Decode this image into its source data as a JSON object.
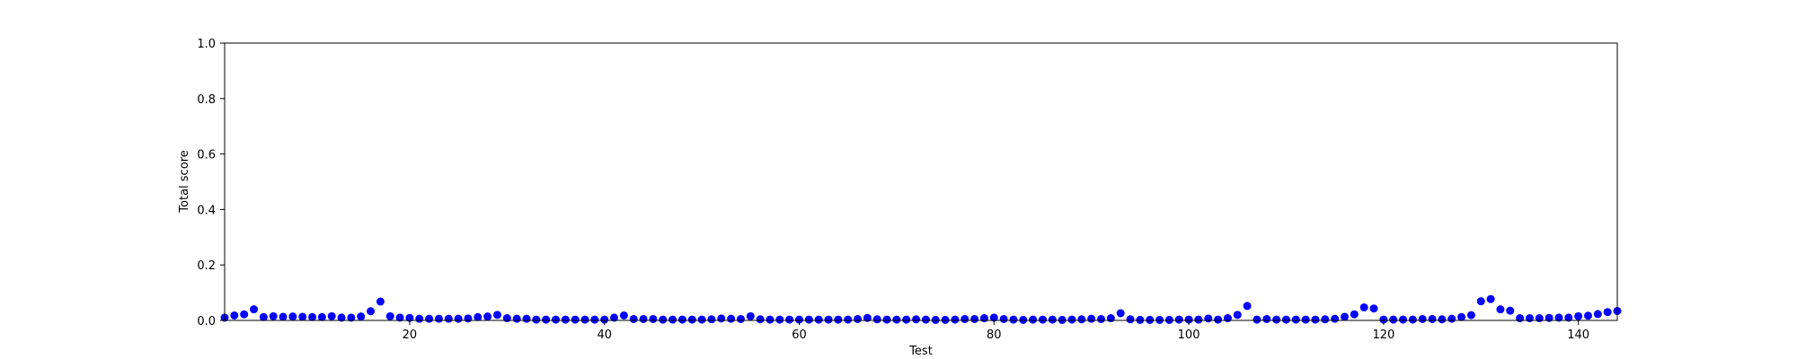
{
  "chart_data": {
    "type": "scatter",
    "title": "",
    "xlabel": "Test",
    "ylabel": "Total score",
    "xlim": [
      1,
      144
    ],
    "ylim": [
      0,
      1.0
    ],
    "x_ticks": [
      20,
      40,
      60,
      80,
      100,
      120,
      140
    ],
    "y_ticks": [
      0.0,
      0.2,
      0.4,
      0.6,
      0.8,
      1.0
    ],
    "x_tick_labels": [
      "20",
      "40",
      "60",
      "80",
      "100",
      "120",
      "140"
    ],
    "y_tick_labels": [
      "0.0",
      "0.2",
      "0.4",
      "0.6",
      "0.8",
      "1.0"
    ],
    "grid": false,
    "marker_color": "#0000ff",
    "x": [
      1,
      2,
      3,
      4,
      5,
      6,
      7,
      8,
      9,
      10,
      11,
      12,
      13,
      14,
      15,
      16,
      17,
      18,
      19,
      20,
      21,
      22,
      23,
      24,
      25,
      26,
      27,
      28,
      29,
      30,
      31,
      32,
      33,
      34,
      35,
      36,
      37,
      38,
      39,
      40,
      41,
      42,
      43,
      44,
      45,
      46,
      47,
      48,
      49,
      50,
      51,
      52,
      53,
      54,
      55,
      56,
      57,
      58,
      59,
      60,
      61,
      62,
      63,
      64,
      65,
      66,
      67,
      68,
      69,
      70,
      71,
      72,
      73,
      74,
      75,
      76,
      77,
      78,
      79,
      80,
      81,
      82,
      83,
      84,
      85,
      86,
      87,
      88,
      89,
      90,
      91,
      92,
      93,
      94,
      95,
      96,
      97,
      98,
      99,
      100,
      101,
      102,
      103,
      104,
      105,
      106,
      107,
      108,
      109,
      110,
      111,
      112,
      113,
      114,
      115,
      116,
      117,
      118,
      119,
      120,
      121,
      122,
      123,
      124,
      125,
      126,
      127,
      128,
      129,
      130,
      131,
      132,
      133,
      134,
      135,
      136,
      137,
      138,
      139,
      140,
      141,
      142,
      143,
      144
    ],
    "y": [
      0.01,
      0.018,
      0.022,
      0.04,
      0.012,
      0.015,
      0.013,
      0.014,
      0.013,
      0.012,
      0.012,
      0.015,
      0.01,
      0.01,
      0.014,
      0.033,
      0.068,
      0.015,
      0.01,
      0.009,
      0.006,
      0.006,
      0.006,
      0.006,
      0.006,
      0.007,
      0.012,
      0.014,
      0.02,
      0.008,
      0.006,
      0.006,
      0.003,
      0.003,
      0.003,
      0.003,
      0.003,
      0.003,
      0.003,
      0.003,
      0.01,
      0.018,
      0.005,
      0.005,
      0.005,
      0.003,
      0.003,
      0.003,
      0.003,
      0.003,
      0.004,
      0.007,
      0.006,
      0.005,
      0.015,
      0.004,
      0.003,
      0.003,
      0.003,
      0.003,
      0.003,
      0.003,
      0.003,
      0.003,
      0.003,
      0.005,
      0.009,
      0.004,
      0.003,
      0.003,
      0.003,
      0.004,
      0.003,
      0.002,
      0.002,
      0.003,
      0.005,
      0.005,
      0.008,
      0.01,
      0.005,
      0.003,
      0.002,
      0.003,
      0.003,
      0.003,
      0.002,
      0.003,
      0.004,
      0.006,
      0.005,
      0.008,
      0.026,
      0.004,
      0.002,
      0.002,
      0.002,
      0.002,
      0.003,
      0.003,
      0.003,
      0.007,
      0.003,
      0.008,
      0.02,
      0.052,
      0.003,
      0.005,
      0.003,
      0.003,
      0.003,
      0.003,
      0.003,
      0.004,
      0.006,
      0.013,
      0.022,
      0.047,
      0.043,
      0.003,
      0.003,
      0.003,
      0.003,
      0.005,
      0.005,
      0.004,
      0.006,
      0.012,
      0.019,
      0.069,
      0.077,
      0.04,
      0.035,
      0.008,
      0.008,
      0.008,
      0.009,
      0.01,
      0.01,
      0.015,
      0.017,
      0.023,
      0.03,
      0.034
    ]
  }
}
